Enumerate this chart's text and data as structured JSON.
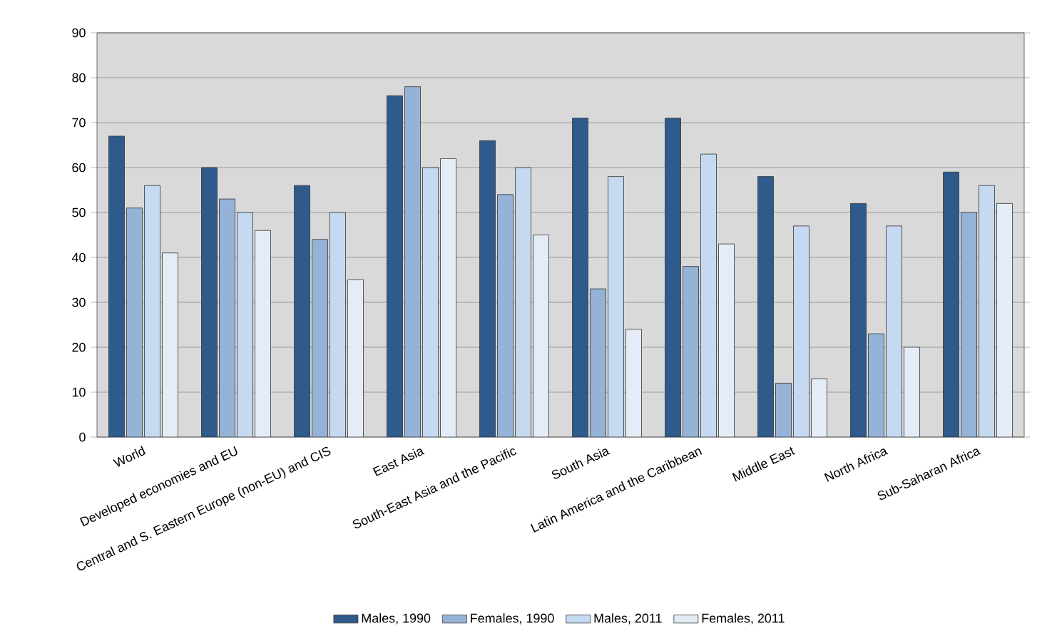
{
  "chart_data": {
    "type": "bar",
    "categories": [
      "World",
      "Developed economies and EU",
      "Central and S. Eastern Europe (non-EU) and CIS",
      "East Asia",
      "South-East Asia and the Pacific",
      "South Asia",
      "Latin America and the Caribbean",
      "Middle East",
      "North Africa",
      "Sub-Saharan Africa"
    ],
    "series": [
      {
        "name": "Males, 1990",
        "color": "#2e5a8c",
        "values": [
          67,
          60,
          56,
          76,
          66,
          71,
          71,
          58,
          52,
          59
        ]
      },
      {
        "name": "Females, 1990",
        "color": "#95b3d7",
        "values": [
          51,
          53,
          44,
          78,
          54,
          33,
          38,
          12,
          23,
          50
        ]
      },
      {
        "name": "Males, 2011",
        "color": "#c5d9f1",
        "values": [
          56,
          50,
          50,
          60,
          60,
          58,
          63,
          47,
          47,
          56
        ]
      },
      {
        "name": "Females, 2011",
        "color": "#e4ecf7",
        "values": [
          41,
          46,
          35,
          62,
          45,
          24,
          43,
          13,
          20,
          52
        ]
      }
    ],
    "ylim": [
      0,
      90
    ],
    "yticks": [
      0,
      10,
      20,
      30,
      40,
      50,
      60,
      70,
      80,
      90
    ],
    "grid": "y",
    "legend": "bottom"
  }
}
